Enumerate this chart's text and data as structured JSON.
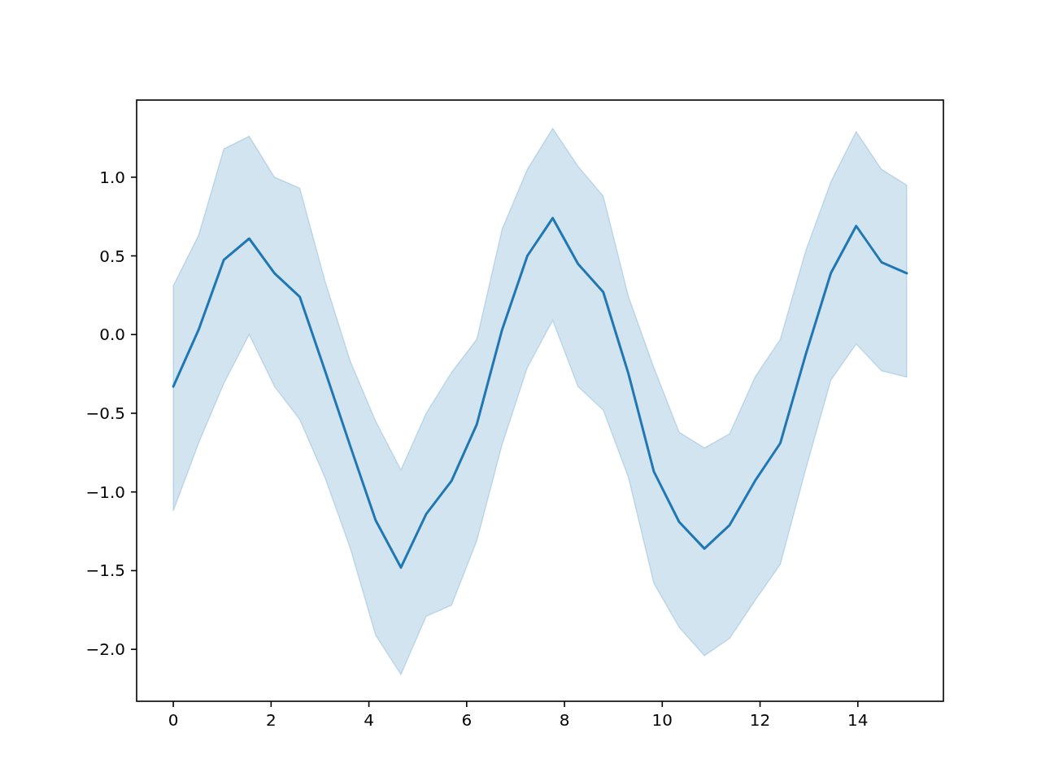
{
  "chart_data": {
    "type": "line",
    "x": [
      0,
      0.517,
      1.034,
      1.552,
      2.069,
      2.586,
      3.103,
      3.621,
      4.138,
      4.655,
      5.172,
      5.69,
      6.207,
      6.724,
      7.241,
      7.759,
      8.276,
      8.793,
      9.31,
      9.828,
      10.345,
      10.862,
      11.379,
      11.897,
      12.414,
      12.931,
      13.448,
      13.966,
      14.483,
      15
    ],
    "series": [
      {
        "color": "#1f77b4",
        "values": [
          -0.33,
          0.03,
          0.475,
          0.61,
          0.39,
          0.24,
          -0.23,
          -0.71,
          -1.18,
          -1.48,
          -1.14,
          -0.93,
          -0.57,
          0.03,
          0.5,
          0.74,
          0.45,
          0.27,
          -0.25,
          -0.87,
          -1.19,
          -1.36,
          -1.21,
          -0.93,
          -0.69,
          -0.13,
          0.39,
          0.69,
          0.46,
          0.39
        ],
        "lower": [
          -1.12,
          -0.69,
          -0.31,
          0.0,
          -0.33,
          -0.54,
          -0.91,
          -1.36,
          -1.91,
          -2.16,
          -1.79,
          -1.72,
          -1.31,
          -0.7,
          -0.21,
          0.09,
          -0.33,
          -0.48,
          -0.91,
          -1.58,
          -1.86,
          -2.04,
          -1.93,
          -1.69,
          -1.46,
          -0.86,
          -0.29,
          -0.06,
          -0.23,
          -0.27
        ],
        "upper": [
          0.31,
          0.63,
          1.18,
          1.26,
          1.0,
          0.93,
          0.34,
          -0.17,
          -0.55,
          -0.86,
          -0.5,
          -0.24,
          -0.03,
          0.67,
          1.05,
          1.31,
          1.07,
          0.88,
          0.24,
          -0.21,
          -0.62,
          -0.72,
          -0.63,
          -0.27,
          -0.03,
          0.53,
          0.97,
          1.29,
          1.05,
          0.95
        ]
      }
    ],
    "xlim": [
      -0.75,
      15.75
    ],
    "ylim": [
      -2.33,
      1.49
    ],
    "xticks": [
      0,
      2,
      4,
      6,
      8,
      10,
      12,
      14
    ],
    "yticks": [
      {
        "value": -2,
        "label": "−2.0"
      },
      {
        "value": -1.5,
        "label": "−1.5"
      },
      {
        "value": -1,
        "label": "−1.0"
      },
      {
        "value": -0.5,
        "label": "−0.5"
      },
      {
        "value": 0,
        "label": "0.0"
      },
      {
        "value": 0.5,
        "label": "0.5"
      },
      {
        "value": 1,
        "label": "1.0"
      }
    ],
    "grid": false
  }
}
